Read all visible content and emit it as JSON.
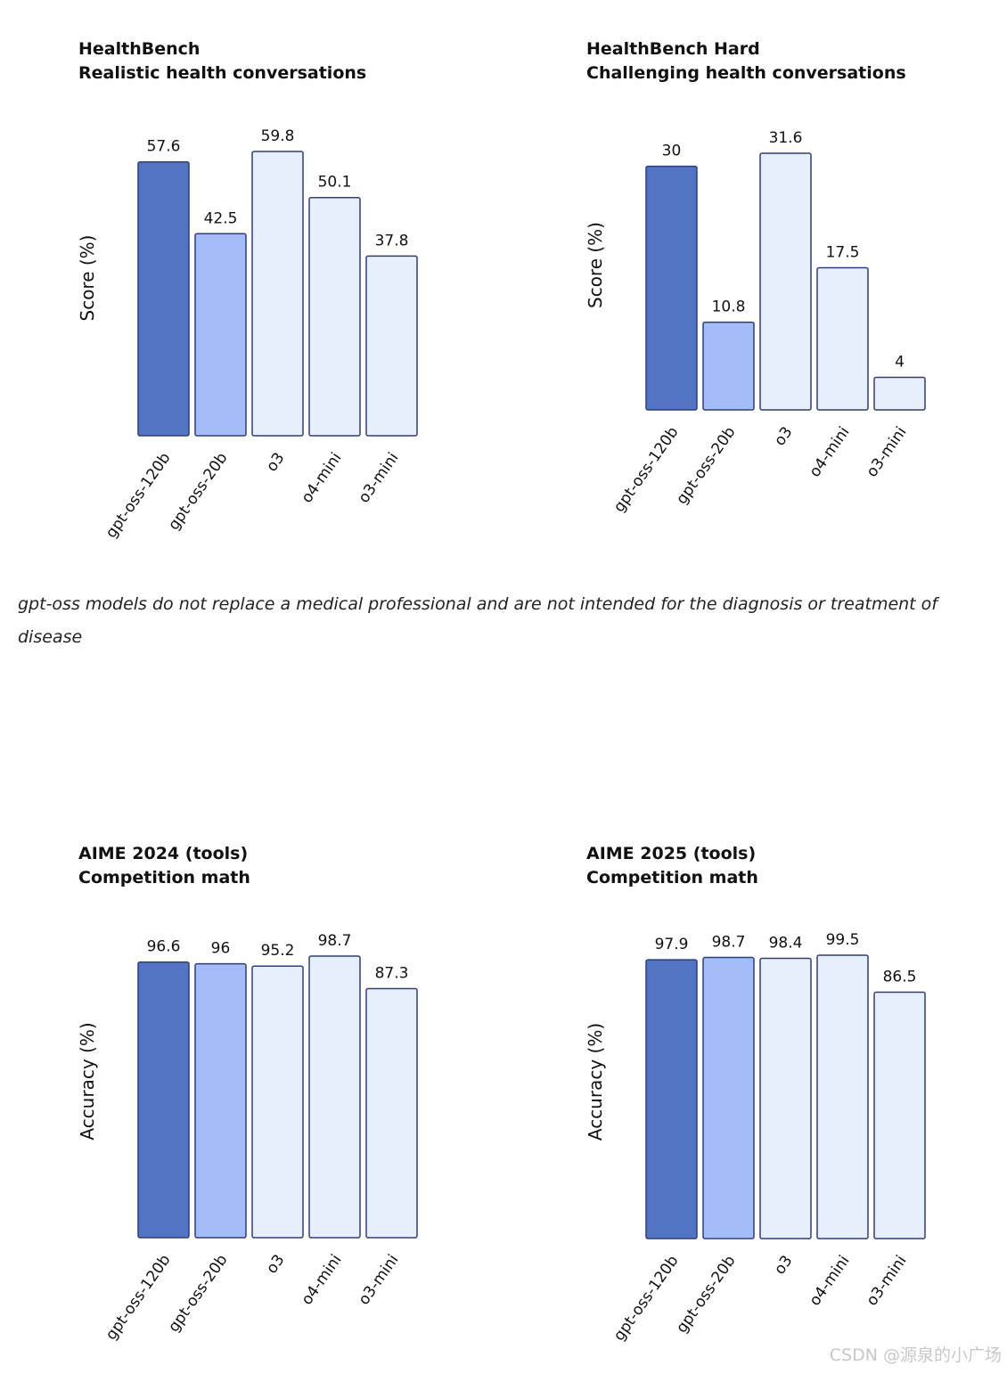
{
  "colors": {
    "gpt-oss-120b": "#5274c3",
    "gpt-oss-20b": "#a4bcf8",
    "reference": "#e7effd",
    "outline": "#2d3f7a"
  },
  "footnote": "gpt-oss models do not replace a medical professional and are not intended for the diagnosis or treatment of disease",
  "watermark": "CSDN @源泉的小广场",
  "chart_data": [
    {
      "type": "bar",
      "title": "HealthBench",
      "subtitle": "Realistic health conversations",
      "ylabel": "Score (%)",
      "categories": [
        "gpt-oss-120b",
        "gpt-oss-20b",
        "o3",
        "o4-mini",
        "o3-mini"
      ],
      "values": [
        57.6,
        42.5,
        59.8,
        50.1,
        37.8
      ],
      "value_labels": [
        "57.6",
        "42.5",
        "59.8",
        "50.1",
        "37.8"
      ],
      "ylim": [
        0,
        59.8
      ],
      "grid": false
    },
    {
      "type": "bar",
      "title": "HealthBench Hard",
      "subtitle": "Challenging health conversations",
      "ylabel": "Score (%)",
      "categories": [
        "gpt-oss-120b",
        "gpt-oss-20b",
        "o3",
        "o4-mini",
        "o3-mini"
      ],
      "values": [
        30,
        10.8,
        31.6,
        17.5,
        4
      ],
      "value_labels": [
        "30",
        "10.8",
        "31.6",
        "17.5",
        "4"
      ],
      "ylim": [
        0,
        31.6
      ],
      "grid": false
    },
    {
      "type": "bar",
      "title": "AIME 2024 (tools)",
      "subtitle": "Competition math",
      "ylabel": "Accuracy (%)",
      "categories": [
        "gpt-oss-120b",
        "gpt-oss-20b",
        "o3",
        "o4-mini",
        "o3-mini"
      ],
      "values": [
        96.6,
        96,
        95.2,
        98.7,
        87.3
      ],
      "value_labels": [
        "96.6",
        "96",
        "95.2",
        "98.7",
        "87.3"
      ],
      "ylim": [
        0,
        98.7
      ],
      "grid": false
    },
    {
      "type": "bar",
      "title": "AIME 2025 (tools)",
      "subtitle": "Competition math",
      "ylabel": "Accuracy (%)",
      "categories": [
        "gpt-oss-120b",
        "gpt-oss-20b",
        "o3",
        "o4-mini",
        "o3-mini"
      ],
      "values": [
        97.9,
        98.7,
        98.4,
        99.5,
        86.5
      ],
      "value_labels": [
        "97.9",
        "98.7",
        "98.4",
        "99.5",
        "86.5"
      ],
      "ylim": [
        0,
        99.5
      ],
      "grid": false
    }
  ]
}
